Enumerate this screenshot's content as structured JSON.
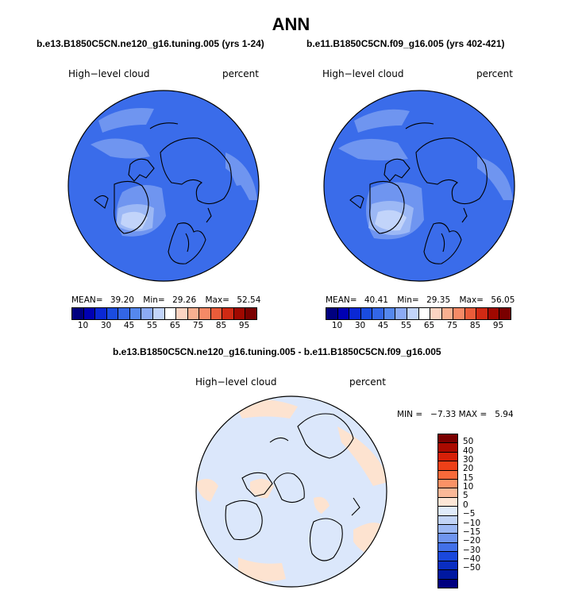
{
  "title": "ANN",
  "left_panel": {
    "case": "b.e13.B1850C5CN.ne120_g16.tuning.005 (yrs 1-24)",
    "variable": "High−level cloud",
    "units": "percent",
    "stats": {
      "mean_label": "MEAN=",
      "mean": "39.20",
      "min_label": "Min=",
      "min": "29.26",
      "max_label": "Max=",
      "max": "52.54"
    }
  },
  "right_panel": {
    "case": "b.e11.B1850C5CN.f09_g16.005 (yrs 402-421)",
    "variable": "High−level cloud",
    "units": "percent",
    "stats": {
      "mean_label": "MEAN=",
      "mean": "40.41",
      "min_label": "Min=",
      "min": "29.35",
      "max_label": "Max=",
      "max": "56.05"
    }
  },
  "diff_panel": {
    "case": "b.e13.B1850C5CN.ne120_g16.tuning.005 - b.e11.B1850C5CN.f09_g16.005",
    "variable": "High−level cloud",
    "units": "percent",
    "stats_text": "MIN =   −7.33 MAX =   5.94"
  },
  "colorbar_top": {
    "colors": [
      "#00007f",
      "#0000b3",
      "#0a28d4",
      "#1a4ce0",
      "#3366e6",
      "#5588ee",
      "#8cabf5",
      "#c2d4fa",
      "#ffffff",
      "#fcd4c2",
      "#f8b090",
      "#f58a66",
      "#ea5c3a",
      "#d02a14",
      "#a00800",
      "#7a0000"
    ],
    "labels": [
      "10",
      "30",
      "45",
      "55",
      "65",
      "75",
      "85",
      "95"
    ]
  },
  "colorbar_diff": {
    "colors": [
      "#7a0000",
      "#aa0a00",
      "#d62008",
      "#ee4018",
      "#f86a3a",
      "#fb9266",
      "#fbb898",
      "#fde6d6",
      "#e0ebfa",
      "#c2d4f7",
      "#9cb8f5",
      "#6f95f0",
      "#4270e8",
      "#1a48dc",
      "#0a2ec2",
      "#0018a0",
      "#000080"
    ],
    "labels": [
      "50",
      "40",
      "30",
      "20",
      "15",
      "10",
      "5",
      "0",
      "−5",
      "−10",
      "−15",
      "−20",
      "−30",
      "−40",
      "−50"
    ]
  },
  "map_colors": {
    "base_left": "#3a6cea",
    "base_right": "#3a6cea",
    "light": "#6f95f0",
    "lighter": "#9cb8f5",
    "lightest": "#c2d4fa",
    "diff_base": "#dbe7fb",
    "diff_warm": "#fde3d0"
  }
}
